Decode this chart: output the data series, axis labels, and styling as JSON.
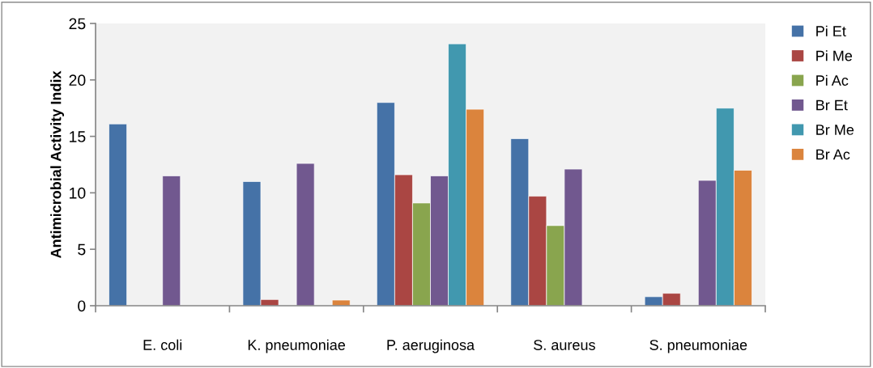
{
  "chart_data": {
    "type": "bar",
    "ylabel": "Antimicrobial Activity Indix",
    "categories": [
      "E. coli",
      "K. pneumoniae",
      "P. aeruginosa",
      "S. aureus",
      "S. pneumoniae"
    ],
    "series": [
      {
        "name": "Pi Et",
        "color": "#4572a7",
        "values": [
          16.1,
          11.0,
          18.0,
          14.8,
          0.8
        ]
      },
      {
        "name": "Pi Me",
        "color": "#aa4643",
        "values": [
          null,
          0.55,
          11.6,
          9.7,
          1.1
        ]
      },
      {
        "name": "Pi Ac",
        "color": "#89a54e",
        "values": [
          null,
          null,
          9.1,
          7.1,
          null
        ]
      },
      {
        "name": "Br Et",
        "color": "#71588f",
        "values": [
          11.5,
          12.6,
          11.5,
          12.1,
          11.1
        ]
      },
      {
        "name": "Br Me",
        "color": "#4198af",
        "values": [
          null,
          null,
          23.2,
          null,
          17.5
        ]
      },
      {
        "name": "Br Ac",
        "color": "#db843d",
        "values": [
          null,
          0.5,
          17.4,
          null,
          12.0
        ]
      }
    ],
    "ylim": [
      0,
      25
    ],
    "yticks": [
      0,
      5,
      10,
      15,
      20,
      25
    ],
    "grid": false,
    "legend": "right"
  }
}
